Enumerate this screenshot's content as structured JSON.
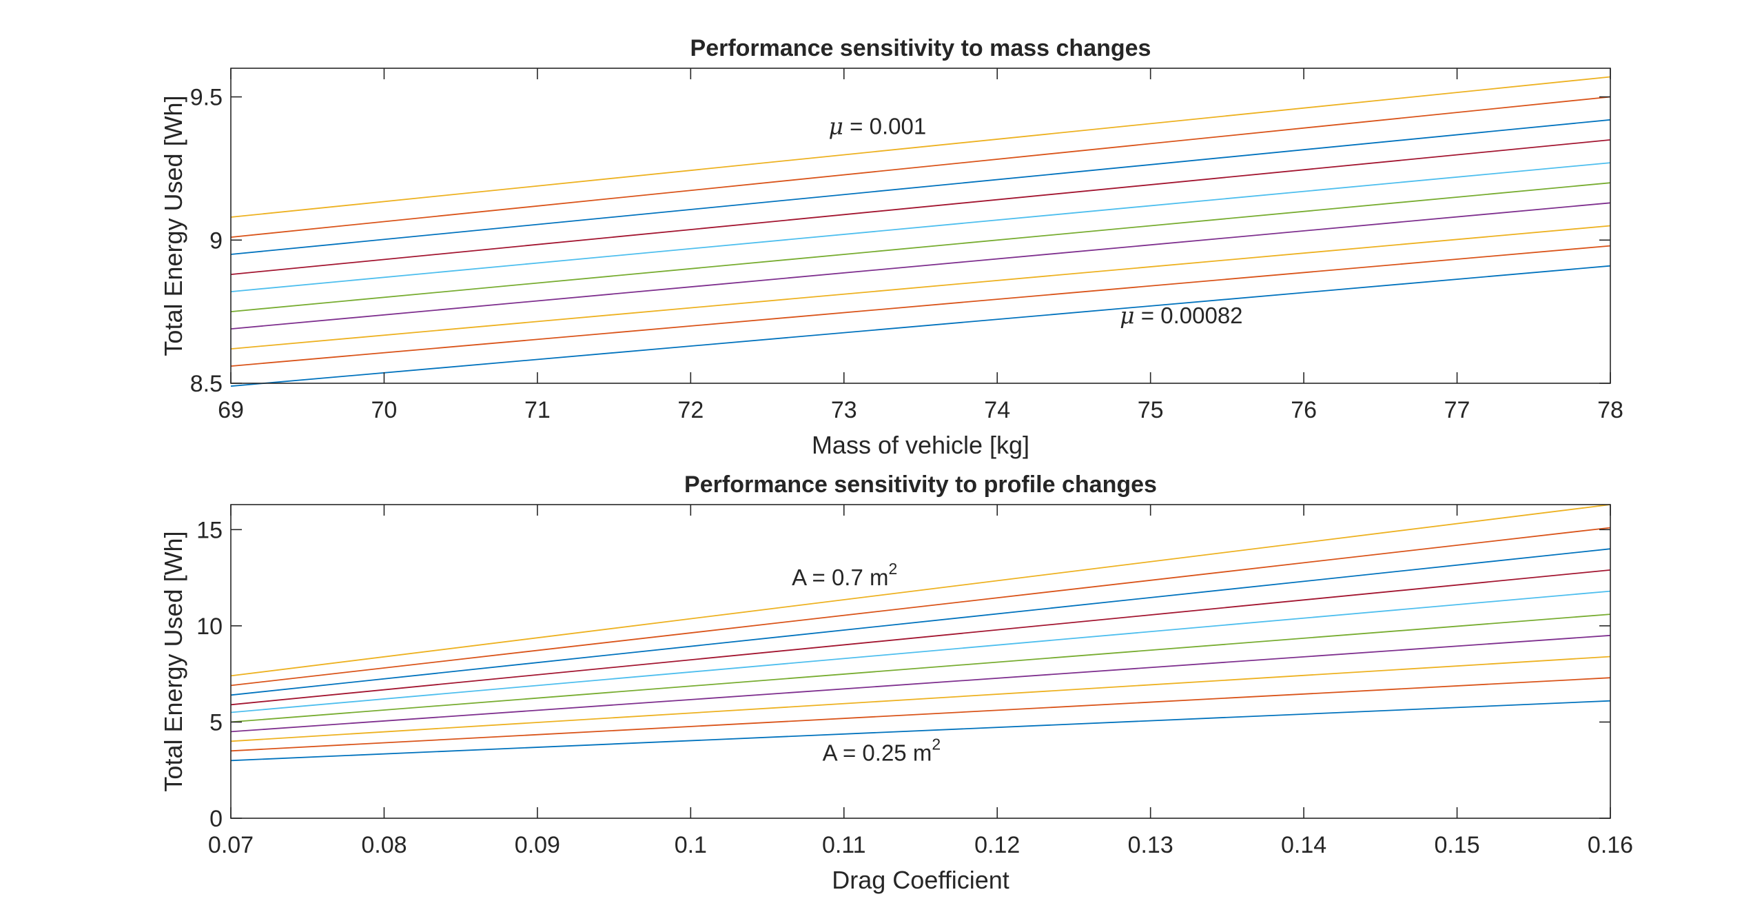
{
  "colors": {
    "axis": "#262626",
    "series_palette": [
      "#0072BD",
      "#D95319",
      "#EDB120",
      "#7E2F8E",
      "#77AC30",
      "#4DBEEE",
      "#A2142F",
      "#0072BD",
      "#D95319",
      "#EDB120"
    ]
  },
  "chart_data": [
    {
      "type": "line",
      "title": "Performance sensitivity to mass changes",
      "xlabel": "Mass of vehicle [kg]",
      "ylabel": "Total Energy Used [Wh]",
      "xlim": [
        69,
        78
      ],
      "ylim": [
        8.5,
        9.6
      ],
      "xticks": [
        69,
        70,
        71,
        72,
        73,
        74,
        75,
        76,
        77,
        78
      ],
      "xtick_labels": [
        "69",
        "70",
        "71",
        "72",
        "73",
        "74",
        "75",
        "76",
        "77",
        "78"
      ],
      "yticks": [
        8.5,
        9,
        9.5
      ],
      "ytick_labels": [
        "8.5",
        "9",
        "9.5"
      ],
      "grid": false,
      "box": true,
      "x": [
        69,
        78
      ],
      "series": [
        {
          "values": [
            8.49,
            8.91
          ]
        },
        {
          "values": [
            8.56,
            8.98
          ]
        },
        {
          "values": [
            8.62,
            9.05
          ]
        },
        {
          "values": [
            8.69,
            9.13
          ]
        },
        {
          "values": [
            8.75,
            9.2
          ]
        },
        {
          "values": [
            8.82,
            9.27
          ]
        },
        {
          "values": [
            8.88,
            9.35
          ]
        },
        {
          "values": [
            8.95,
            9.42
          ]
        },
        {
          "values": [
            9.01,
            9.5
          ]
        },
        {
          "values": [
            9.08,
            9.57
          ]
        }
      ],
      "annotations": [
        {
          "symbol": "μ",
          "text": " = 0.001",
          "x": 72.9,
          "y": 9.37
        },
        {
          "symbol": "μ",
          "text": " = 0.00082",
          "x": 74.8,
          "y": 8.71
        }
      ]
    },
    {
      "type": "line",
      "title": "Performance sensitivity to profile changes",
      "xlabel": "Drag Coefficient",
      "ylabel": "Total Energy Used [Wh]",
      "xlim": [
        0.07,
        0.16
      ],
      "ylim": [
        0,
        16.3
      ],
      "xticks": [
        0.07,
        0.08,
        0.09,
        0.1,
        0.11,
        0.12,
        0.13,
        0.14,
        0.15,
        0.16
      ],
      "xtick_labels": [
        "0.07",
        "0.08",
        "0.09",
        "0.1",
        "0.11",
        "0.12",
        "0.13",
        "0.14",
        "0.15",
        "0.16"
      ],
      "yticks": [
        0,
        5,
        10,
        15
      ],
      "ytick_labels": [
        "0",
        "5",
        "10",
        "15"
      ],
      "grid": false,
      "box": true,
      "x": [
        0.07,
        0.16
      ],
      "series": [
        {
          "values": [
            3.0,
            6.1
          ]
        },
        {
          "values": [
            3.5,
            7.3
          ]
        },
        {
          "values": [
            4.0,
            8.4
          ]
        },
        {
          "values": [
            4.5,
            9.5
          ]
        },
        {
          "values": [
            5.0,
            10.6
          ]
        },
        {
          "values": [
            5.5,
            11.8
          ]
        },
        {
          "values": [
            5.9,
            12.9
          ]
        },
        {
          "values": [
            6.4,
            14.0
          ]
        },
        {
          "values": [
            6.9,
            15.1
          ]
        },
        {
          "values": [
            7.4,
            16.3
          ]
        }
      ],
      "annotations": [
        {
          "text": "A = 0.7 m",
          "superscript": "2",
          "x": 0.1066,
          "y": 12.1
        },
        {
          "text": "A = 0.25 m",
          "superscript": "2",
          "x": 0.1086,
          "y": 3.0
        }
      ]
    }
  ]
}
